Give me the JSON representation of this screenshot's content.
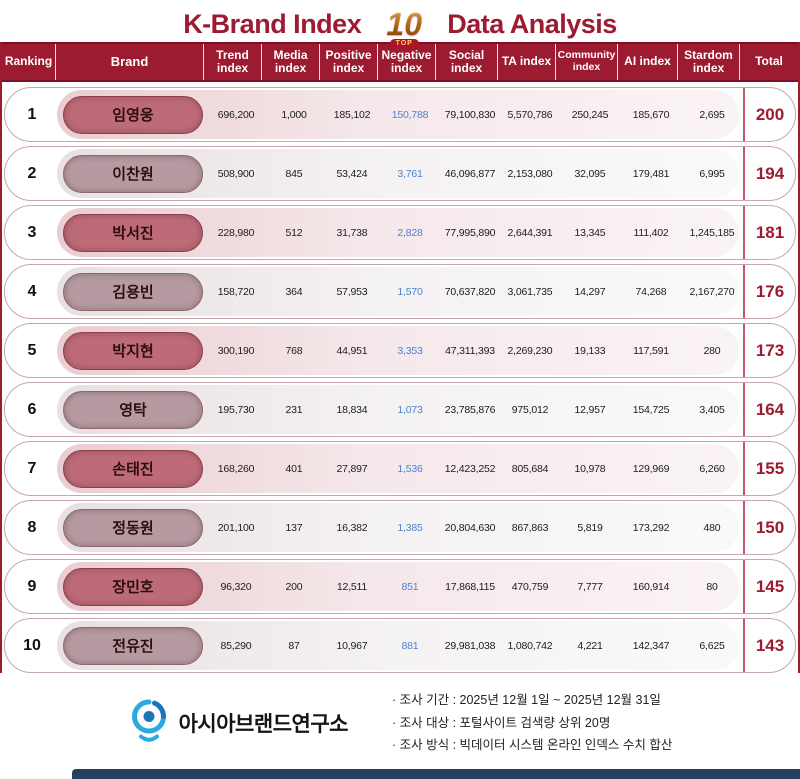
{
  "title": {
    "part1": "K-Brand Index",
    "part2": "Data Analysis",
    "badge_number": "10",
    "badge_label": "TOP"
  },
  "chart_data": {
    "type": "table",
    "title": "K-Brand Index Data Analysis",
    "columns": [
      "Ranking",
      "Brand",
      "Trend index",
      "Media index",
      "Positive index",
      "Negative index",
      "Social index",
      "TA index",
      "Community index",
      "AI index",
      "Stardom index",
      "Total"
    ],
    "rows": [
      {
        "rank": "1",
        "brand": "임영웅",
        "values": [
          "696,200",
          "1,000",
          "185,102",
          "150,788",
          "79,100,830",
          "5,570,786",
          "250,245",
          "185,670",
          "2,695"
        ],
        "total": "200"
      },
      {
        "rank": "2",
        "brand": "이찬원",
        "values": [
          "508,900",
          "845",
          "53,424",
          "3,761",
          "46,096,877",
          "2,153,080",
          "32,095",
          "179,481",
          "6,995"
        ],
        "total": "194"
      },
      {
        "rank": "3",
        "brand": "박서진",
        "values": [
          "228,980",
          "512",
          "31,738",
          "2,828",
          "77,995,890",
          "2,644,391",
          "13,345",
          "111,402",
          "1,245,185"
        ],
        "total": "181"
      },
      {
        "rank": "4",
        "brand": "김용빈",
        "values": [
          "158,720",
          "364",
          "57,953",
          "1,570",
          "70,637,820",
          "3,061,735",
          "14,297",
          "74,268",
          "2,167,270"
        ],
        "total": "176"
      },
      {
        "rank": "5",
        "brand": "박지현",
        "values": [
          "300,190",
          "768",
          "44,951",
          "3,353",
          "47,311,393",
          "2,269,230",
          "19,133",
          "117,591",
          "280"
        ],
        "total": "173"
      },
      {
        "rank": "6",
        "brand": "영탁",
        "values": [
          "195,730",
          "231",
          "18,834",
          "1,073",
          "23,785,876",
          "975,012",
          "12,957",
          "154,725",
          "3,405"
        ],
        "total": "164"
      },
      {
        "rank": "7",
        "brand": "손태진",
        "values": [
          "168,260",
          "401",
          "27,897",
          "1,536",
          "12,423,252",
          "805,684",
          "10,978",
          "129,969",
          "6,260"
        ],
        "total": "155"
      },
      {
        "rank": "8",
        "brand": "정동원",
        "values": [
          "201,100",
          "137",
          "16,382",
          "1,385",
          "20,804,630",
          "867,863",
          "5,819",
          "173,292",
          "480"
        ],
        "total": "150"
      },
      {
        "rank": "9",
        "brand": "장민호",
        "values": [
          "96,320",
          "200",
          "12,511",
          "851",
          "17,868,115",
          "470,759",
          "7,777",
          "160,914",
          "80"
        ],
        "total": "145"
      },
      {
        "rank": "10",
        "brand": "전유진",
        "values": [
          "85,290",
          "87",
          "10,967",
          "881",
          "29,981,038",
          "1,080,742",
          "4,221",
          "142,347",
          "6,625"
        ],
        "total": "143"
      }
    ]
  },
  "footer": {
    "org_name": "아시아브랜드연구소",
    "notes": [
      "· 조사 기간 : 2025년 12월 1일 ~ 2025년 12월 31일",
      "· 조사 대상 : 포털사이트 검색량 상위 20명",
      "· 조사 방식 : 빅데이터 시스템 온라인 인덱스 수치 합산"
    ]
  },
  "colors": {
    "accent_maroon": "#9c1b31",
    "header_bg": "#9c1b31",
    "pill_odd": "#bd6b78",
    "pill_even": "#b59ba1",
    "negative_blue": "#4d82d2",
    "badge_gold": "#c98910",
    "bottom_bar_navy": "#24405f"
  }
}
